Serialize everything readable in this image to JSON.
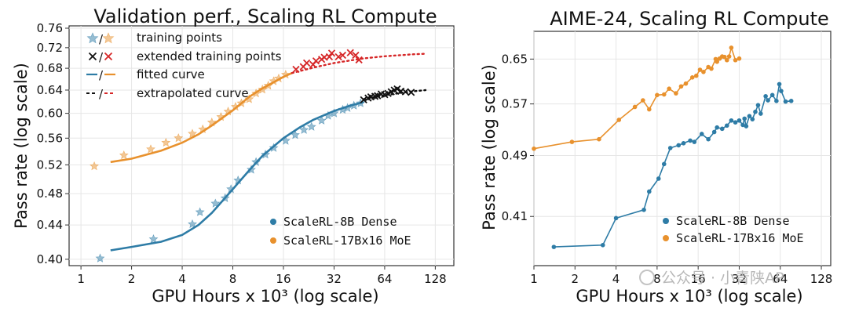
{
  "colors": {
    "blue": "#2e7ca6",
    "orange": "#e8912d",
    "red": "#d62728",
    "black": "#111111",
    "grid": "#e6e6e6"
  },
  "watermark": {
    "text": "公众号 · 小青陕AP"
  },
  "chart_data": [
    {
      "type": "scatter",
      "title": "Validation perf., Scaling RL Compute",
      "xlabel": "GPU Hours x 10³ (log scale)",
      "ylabel": "Pass rate (log scale)",
      "xscale": "log",
      "yscale": "log",
      "xlim": [
        0.85,
        165
      ],
      "ylim": [
        0.393,
        0.765
      ],
      "xticks": [
        1,
        2,
        4,
        8,
        16,
        32,
        64,
        128
      ],
      "xtick_labels": [
        "1",
        "2",
        "4",
        "8",
        "16",
        "32",
        "64",
        "128"
      ],
      "yticks": [
        0.4,
        0.44,
        0.48,
        0.52,
        0.56,
        0.6,
        0.64,
        0.68,
        0.72,
        0.76
      ],
      "ytick_labels": [
        "0.40",
        "0.44",
        "0.48",
        "0.52",
        "0.56",
        "0.60",
        "0.64",
        "0.68",
        "0.72",
        "0.76"
      ],
      "grid": true,
      "legend_top": [
        {
          "glyph": "★/★",
          "label": "training points"
        },
        {
          "glyph": "×/×",
          "label": "extended training points"
        },
        {
          "glyph": "—/—",
          "label": "fitted curve"
        },
        {
          "glyph": "--/--",
          "label": "extrapolated curve"
        }
      ],
      "legend_bottom": [
        {
          "series": "ScaleRL-8B Dense",
          "color": "blue"
        },
        {
          "series": "ScaleRL-17Bx16 MoE",
          "color": "orange"
        }
      ],
      "series": [
        {
          "name": "ScaleRL-8B Dense",
          "color": "blue",
          "training_points": [
            [
              1.3,
              0.401
            ],
            [
              2.7,
              0.423
            ],
            [
              4.6,
              0.441
            ],
            [
              5.1,
              0.456
            ],
            [
              6.3,
              0.467
            ],
            [
              7.2,
              0.474
            ],
            [
              7.8,
              0.486
            ],
            [
              8.6,
              0.498
            ],
            [
              10.3,
              0.513
            ],
            [
              11.0,
              0.524
            ],
            [
              12.5,
              0.535
            ],
            [
              14.0,
              0.545
            ],
            [
              16.5,
              0.556
            ],
            [
              18.8,
              0.565
            ],
            [
              21.2,
              0.573
            ],
            [
              23.5,
              0.578
            ],
            [
              27.0,
              0.588
            ],
            [
              29.5,
              0.596
            ],
            [
              32.0,
              0.6
            ],
            [
              36.0,
              0.606
            ],
            [
              38.5,
              0.609
            ],
            [
              42.0,
              0.613
            ],
            [
              46.0,
              0.617
            ]
          ],
          "extended_points": [
            [
              48,
              0.623
            ],
            [
              51,
              0.626
            ],
            [
              53,
              0.628
            ],
            [
              56,
              0.629
            ],
            [
              58,
              0.63
            ],
            [
              61,
              0.633
            ],
            [
              64,
              0.632
            ],
            [
              67,
              0.634
            ],
            [
              70,
              0.637
            ],
            [
              73,
              0.64
            ],
            [
              76,
              0.642
            ],
            [
              80,
              0.638
            ],
            [
              85,
              0.637
            ],
            [
              92,
              0.636
            ]
          ],
          "fit_x": [
            1.5,
            2,
            3,
            4,
            5,
            6,
            8,
            10,
            12,
            16,
            20,
            24,
            32,
            40,
            48
          ],
          "fit_y": [
            0.41,
            0.414,
            0.42,
            0.428,
            0.44,
            0.455,
            0.486,
            0.512,
            0.533,
            0.56,
            0.577,
            0.589,
            0.604,
            0.613,
            0.619
          ],
          "extrap_x": [
            48,
            64,
            80,
            96,
            112
          ],
          "extrap_y": [
            0.624,
            0.631,
            0.635,
            0.638,
            0.64
          ]
        },
        {
          "name": "ScaleRL-17Bx16 MoE",
          "color": "orange",
          "training_points": [
            [
              1.2,
              0.518
            ],
            [
              1.8,
              0.534
            ],
            [
              2.6,
              0.543
            ],
            [
              3.2,
              0.553
            ],
            [
              3.8,
              0.56
            ],
            [
              4.6,
              0.567
            ],
            [
              5.3,
              0.574
            ],
            [
              6.0,
              0.585
            ],
            [
              6.8,
              0.594
            ],
            [
              7.5,
              0.603
            ],
            [
              8.3,
              0.611
            ],
            [
              9.0,
              0.617
            ],
            [
              10.0,
              0.624
            ],
            [
              11.0,
              0.634
            ],
            [
              12.0,
              0.641
            ],
            [
              13.0,
              0.648
            ],
            [
              14.0,
              0.656
            ],
            [
              15.0,
              0.661
            ],
            [
              16.5,
              0.668
            ]
          ],
          "extended_points": [
            [
              19,
              0.678
            ],
            [
              21,
              0.683
            ],
            [
              22,
              0.69
            ],
            [
              24,
              0.687
            ],
            [
              25,
              0.694
            ],
            [
              27,
              0.697
            ],
            [
              28,
              0.701
            ],
            [
              30,
              0.702
            ],
            [
              31,
              0.709
            ],
            [
              34,
              0.702
            ],
            [
              36,
              0.705
            ],
            [
              40,
              0.71
            ],
            [
              43,
              0.705
            ],
            [
              45,
              0.696
            ]
          ],
          "fit_x": [
            1.5,
            2,
            3,
            4,
            5,
            6,
            8,
            10,
            12,
            16,
            18
          ],
          "fit_y": [
            0.524,
            0.529,
            0.541,
            0.553,
            0.566,
            0.58,
            0.605,
            0.628,
            0.643,
            0.664,
            0.671
          ],
          "extrap_x": [
            18,
            24,
            32,
            48,
            64,
            96,
            112
          ],
          "extrap_y": [
            0.671,
            0.681,
            0.69,
            0.699,
            0.703,
            0.707,
            0.708
          ]
        }
      ]
    },
    {
      "type": "line",
      "title": "AIME-24, Scaling RL Compute",
      "xlabel": "GPU Hours x 10³ (log scale)",
      "ylabel": "Pass rate (log scale)",
      "xscale": "log",
      "yscale": "log",
      "xlim": [
        1,
        150
      ],
      "ylim": [
        0.355,
        0.705
      ],
      "xticks": [
        1,
        2,
        4,
        8,
        16,
        32,
        64,
        128
      ],
      "xtick_labels": [
        "1",
        "2",
        "4",
        "8",
        "16",
        "32",
        "64",
        "128"
      ],
      "yticks": [
        0.41,
        0.49,
        0.57,
        0.65
      ],
      "ytick_labels": [
        "0.41",
        "0.49",
        "0.57",
        "0.65"
      ],
      "grid": true,
      "legend": [
        {
          "series": "ScaleRL-8B Dense",
          "color": "blue"
        },
        {
          "series": "ScaleRL-17Bx16 MoE",
          "color": "orange"
        }
      ],
      "series": [
        {
          "name": "ScaleRL-8B Dense",
          "color": "blue",
          "x": [
            1.4,
            3.2,
            4,
            6.4,
            7,
            8.2,
            9,
            10,
            11.5,
            12.5,
            14,
            15,
            17,
            19,
            21,
            22,
            24,
            26,
            28,
            30,
            32,
            34,
            35,
            36,
            38,
            40,
            42,
            44,
            46,
            50,
            52,
            56,
            60,
            63,
            65,
            70,
            77
          ],
          "y": [
            0.375,
            0.377,
            0.408,
            0.418,
            0.441,
            0.458,
            0.478,
            0.501,
            0.505,
            0.508,
            0.512,
            0.51,
            0.522,
            0.514,
            0.525,
            0.532,
            0.53,
            0.535,
            0.543,
            0.54,
            0.543,
            0.536,
            0.546,
            0.534,
            0.55,
            0.545,
            0.557,
            0.568,
            0.554,
            0.583,
            0.576,
            0.585,
            0.575,
            0.604,
            0.592,
            0.574,
            0.575
          ]
        },
        {
          "name": "ScaleRL-17Bx16 MoE",
          "color": "orange",
          "x": [
            1,
            1.9,
            3,
            4.2,
            5.5,
            6.3,
            7,
            8,
            9,
            9.8,
            11,
            12,
            13,
            14.5,
            15.5,
            16.5,
            17.5,
            19,
            20,
            21.5,
            22,
            23,
            24,
            25,
            26,
            27,
            28,
            30,
            32
          ],
          "y": [
            0.5,
            0.51,
            0.514,
            0.544,
            0.565,
            0.576,
            0.561,
            0.585,
            0.586,
            0.596,
            0.588,
            0.6,
            0.605,
            0.616,
            0.619,
            0.63,
            0.626,
            0.635,
            0.632,
            0.65,
            0.645,
            0.651,
            0.655,
            0.654,
            0.648,
            0.655,
            0.672,
            0.648,
            0.651
          ]
        }
      ]
    }
  ]
}
